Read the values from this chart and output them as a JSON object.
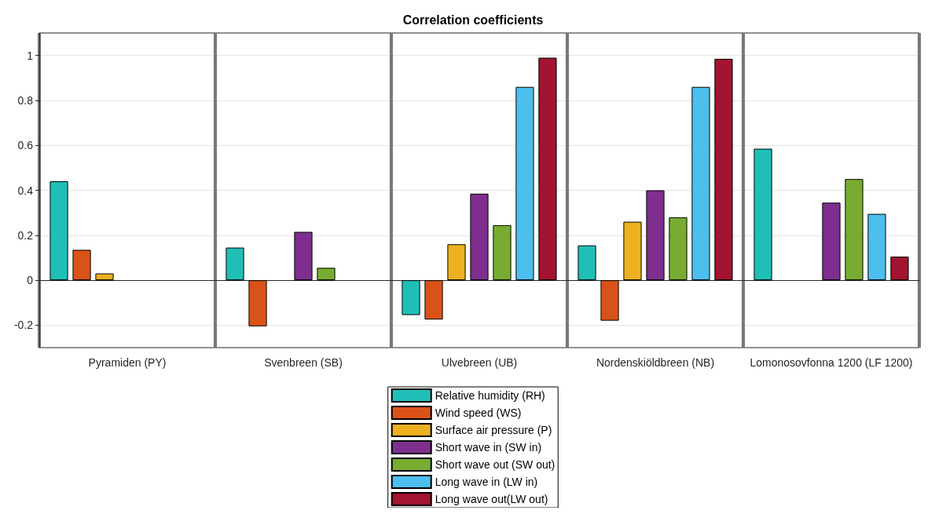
{
  "chart_data": {
    "type": "bar",
    "title": "Correlation coefficients",
    "categories": [
      "Pyramiden (PY)",
      "Svenbreen (SB)",
      "Ulvebreen (UB)",
      "Nordenskiöldbreen (NB)",
      "Lomonosovfonna 1200 (LF 1200)"
    ],
    "series": [
      {
        "name": "Relative humidity (RH)",
        "color": "#1fbfb8",
        "values": [
          0.44,
          0.145,
          -0.155,
          0.155,
          0.585
        ]
      },
      {
        "name": "Wind speed (WS)",
        "color": "#d95319",
        "values": [
          0.135,
          -0.205,
          -0.175,
          -0.18,
          null
        ]
      },
      {
        "name": "Surface air pressure (P)",
        "color": "#edb120",
        "values": [
          0.03,
          null,
          0.16,
          0.26,
          null
        ]
      },
      {
        "name": "Short wave in (SW in)",
        "color": "#7e2f8e",
        "values": [
          null,
          0.215,
          0.385,
          0.4,
          0.345
        ]
      },
      {
        "name": "Short wave out (SW out)",
        "color": "#77ac30",
        "values": [
          null,
          0.055,
          0.245,
          0.28,
          0.45
        ]
      },
      {
        "name": "Long wave in (LW in)",
        "color": "#4dbeee",
        "values": [
          null,
          null,
          0.86,
          0.86,
          0.295
        ]
      },
      {
        "name": "Long wave out(LW out)",
        "color": "#a2142f",
        "values": [
          null,
          null,
          0.99,
          0.985,
          0.105
        ]
      }
    ],
    "ylim": [
      -0.3,
      1.1
    ],
    "yticks": [
      -0.2,
      0,
      0.2,
      0.4,
      0.6,
      0.8,
      1
    ],
    "grid": true,
    "legend": "bottom"
  }
}
